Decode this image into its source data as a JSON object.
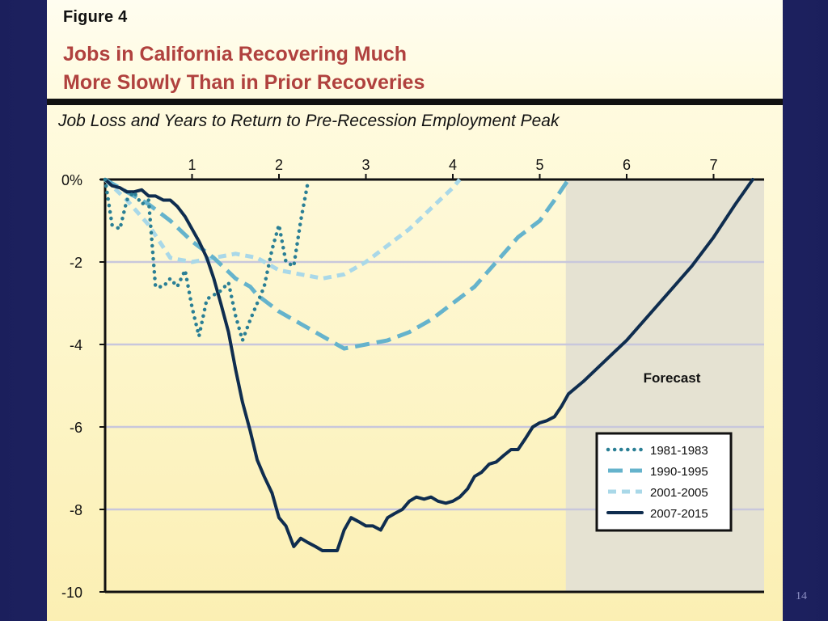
{
  "slide": {
    "page_number": "14"
  },
  "figure": {
    "label": "Figure 4",
    "title_line1": "Jobs in California Recovering Much",
    "title_line2": "More Slowly Than in Prior Recoveries",
    "subtitle": "Job Loss and Years to Return to Pre-Recession Employment Peak"
  },
  "chart_data": {
    "type": "line",
    "title": "Job Loss and Years to Return to Pre-Recession Employment Peak",
    "xlabel": "",
    "ylabel": "",
    "x_axis_position": "top",
    "xlim": [
      0,
      7.5
    ],
    "ylim": [
      -10,
      0
    ],
    "x_ticks": [
      1,
      2,
      3,
      4,
      5,
      6,
      7
    ],
    "x_tick_labels": [
      "1",
      "2",
      "3",
      "4",
      "5",
      "6",
      "7"
    ],
    "y_ticks": [
      0,
      -2,
      -4,
      -6,
      -8,
      -10
    ],
    "y_tick_labels": [
      "0%",
      "-2",
      "-4",
      "-6",
      "-8",
      "-10"
    ],
    "grid": "horizontal",
    "forecast": {
      "label": "Forecast",
      "x_start": 5.3,
      "x_end": 7.5,
      "color": "#e5e2d2"
    },
    "legend_position": "lower-right",
    "series": [
      {
        "name": "1981-1983",
        "style": "dotted",
        "color": "#2a7f95",
        "points": [
          [
            0,
            0
          ],
          [
            0.08,
            -1.1
          ],
          [
            0.17,
            -1.2
          ],
          [
            0.25,
            -0.5
          ],
          [
            0.33,
            -0.3
          ],
          [
            0.42,
            -0.6
          ],
          [
            0.5,
            -0.5
          ],
          [
            0.58,
            -2.6
          ],
          [
            0.67,
            -2.6
          ],
          [
            0.75,
            -2.4
          ],
          [
            0.83,
            -2.6
          ],
          [
            0.92,
            -2.2
          ],
          [
            1.0,
            -3.1
          ],
          [
            1.08,
            -3.8
          ],
          [
            1.17,
            -2.9
          ],
          [
            1.25,
            -2.8
          ],
          [
            1.33,
            -2.7
          ],
          [
            1.42,
            -2.5
          ],
          [
            1.5,
            -3.3
          ],
          [
            1.58,
            -3.9
          ],
          [
            1.67,
            -3.4
          ],
          [
            1.75,
            -3.0
          ],
          [
            1.83,
            -2.6
          ],
          [
            1.92,
            -1.7
          ],
          [
            2.0,
            -1.1
          ],
          [
            2.08,
            -2.0
          ],
          [
            2.17,
            -2.1
          ],
          [
            2.25,
            -1.0
          ],
          [
            2.33,
            -0.1
          ]
        ]
      },
      {
        "name": "1990-1995",
        "style": "dashed",
        "color": "#65b3cc",
        "points": [
          [
            0,
            0
          ],
          [
            0.25,
            -0.3
          ],
          [
            0.5,
            -0.6
          ],
          [
            0.75,
            -1.0
          ],
          [
            1.0,
            -1.5
          ],
          [
            1.25,
            -1.9
          ],
          [
            1.5,
            -2.4
          ],
          [
            1.67,
            -2.6
          ],
          [
            1.75,
            -2.8
          ],
          [
            2.0,
            -3.2
          ],
          [
            2.25,
            -3.5
          ],
          [
            2.5,
            -3.8
          ],
          [
            2.75,
            -4.1
          ],
          [
            3.0,
            -4.0
          ],
          [
            3.25,
            -3.9
          ],
          [
            3.5,
            -3.7
          ],
          [
            3.75,
            -3.4
          ],
          [
            4.0,
            -3.0
          ],
          [
            4.25,
            -2.6
          ],
          [
            4.5,
            -2.0
          ],
          [
            4.75,
            -1.4
          ],
          [
            5.0,
            -1.0
          ],
          [
            5.17,
            -0.5
          ],
          [
            5.33,
            0.0
          ]
        ]
      },
      {
        "name": "2001-2005",
        "style": "dashed-light",
        "color": "#a9d8e8",
        "points": [
          [
            0,
            0
          ],
          [
            0.25,
            -0.5
          ],
          [
            0.5,
            -1.1
          ],
          [
            0.75,
            -1.9
          ],
          [
            1.0,
            -2.0
          ],
          [
            1.25,
            -1.9
          ],
          [
            1.5,
            -1.8
          ],
          [
            1.75,
            -1.9
          ],
          [
            2.0,
            -2.2
          ],
          [
            2.25,
            -2.3
          ],
          [
            2.5,
            -2.4
          ],
          [
            2.75,
            -2.3
          ],
          [
            3.0,
            -2.0
          ],
          [
            3.25,
            -1.6
          ],
          [
            3.5,
            -1.2
          ],
          [
            3.75,
            -0.7
          ],
          [
            4.0,
            -0.2
          ],
          [
            4.08,
            0.0
          ]
        ]
      },
      {
        "name": "2007-2015",
        "style": "solid",
        "color": "#0f2d4f",
        "points": [
          [
            0,
            0
          ],
          [
            0.08,
            -0.15
          ],
          [
            0.17,
            -0.2
          ],
          [
            0.25,
            -0.3
          ],
          [
            0.33,
            -0.3
          ],
          [
            0.42,
            -0.25
          ],
          [
            0.5,
            -0.4
          ],
          [
            0.58,
            -0.4
          ],
          [
            0.67,
            -0.5
          ],
          [
            0.75,
            -0.5
          ],
          [
            0.83,
            -0.65
          ],
          [
            0.92,
            -0.9
          ],
          [
            1.0,
            -1.2
          ],
          [
            1.08,
            -1.5
          ],
          [
            1.17,
            -1.9
          ],
          [
            1.25,
            -2.4
          ],
          [
            1.33,
            -3.0
          ],
          [
            1.42,
            -3.7
          ],
          [
            1.5,
            -4.6
          ],
          [
            1.58,
            -5.4
          ],
          [
            1.67,
            -6.1
          ],
          [
            1.75,
            -6.8
          ],
          [
            1.83,
            -7.2
          ],
          [
            1.92,
            -7.6
          ],
          [
            2.0,
            -8.2
          ],
          [
            2.08,
            -8.4
          ],
          [
            2.17,
            -8.9
          ],
          [
            2.25,
            -8.7
          ],
          [
            2.33,
            -8.8
          ],
          [
            2.42,
            -8.9
          ],
          [
            2.5,
            -9.0
          ],
          [
            2.58,
            -9.0
          ],
          [
            2.67,
            -9.0
          ],
          [
            2.75,
            -8.5
          ],
          [
            2.83,
            -8.2
          ],
          [
            2.92,
            -8.3
          ],
          [
            3.0,
            -8.4
          ],
          [
            3.08,
            -8.4
          ],
          [
            3.17,
            -8.5
          ],
          [
            3.25,
            -8.2
          ],
          [
            3.33,
            -8.1
          ],
          [
            3.42,
            -8.0
          ],
          [
            3.5,
            -7.8
          ],
          [
            3.58,
            -7.7
          ],
          [
            3.67,
            -7.75
          ],
          [
            3.75,
            -7.7
          ],
          [
            3.83,
            -7.8
          ],
          [
            3.92,
            -7.85
          ],
          [
            4.0,
            -7.8
          ],
          [
            4.08,
            -7.7
          ],
          [
            4.17,
            -7.5
          ],
          [
            4.25,
            -7.2
          ],
          [
            4.33,
            -7.1
          ],
          [
            4.42,
            -6.9
          ],
          [
            4.5,
            -6.85
          ],
          [
            4.58,
            -6.7
          ],
          [
            4.67,
            -6.55
          ],
          [
            4.75,
            -6.55
          ],
          [
            4.83,
            -6.3
          ],
          [
            4.92,
            -6.0
          ],
          [
            5.0,
            -5.9
          ],
          [
            5.08,
            -5.85
          ],
          [
            5.17,
            -5.75
          ],
          [
            5.25,
            -5.5
          ],
          [
            5.33,
            -5.2
          ],
          [
            5.5,
            -4.9
          ],
          [
            5.75,
            -4.4
          ],
          [
            6.0,
            -3.9
          ],
          [
            6.25,
            -3.3
          ],
          [
            6.5,
            -2.7
          ],
          [
            6.75,
            -2.1
          ],
          [
            7.0,
            -1.4
          ],
          [
            7.25,
            -0.6
          ],
          [
            7.45,
            0.0
          ]
        ]
      }
    ]
  }
}
